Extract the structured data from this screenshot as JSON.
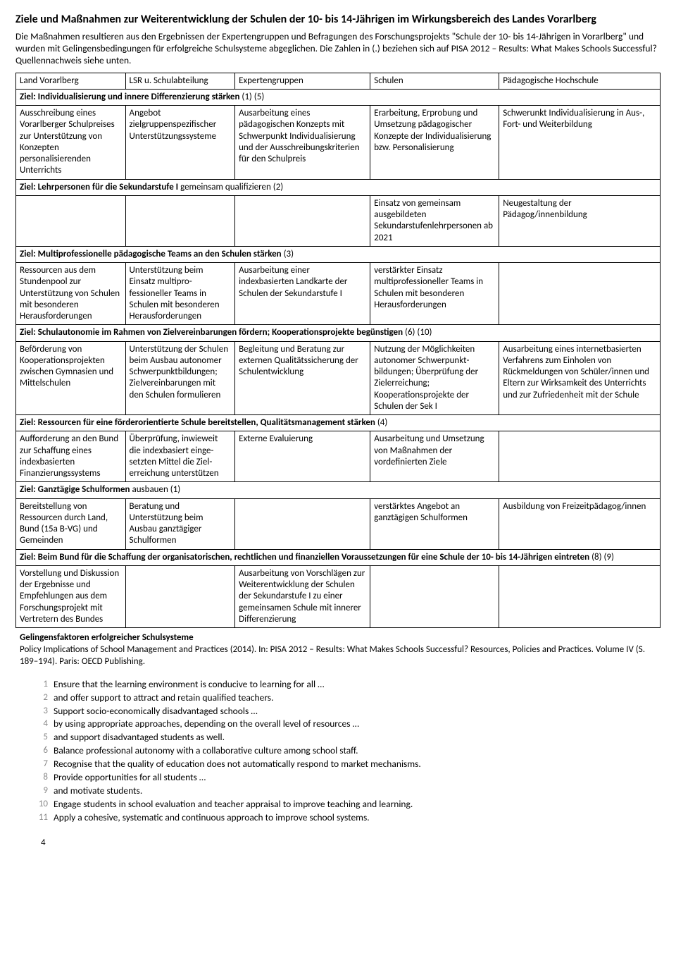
{
  "title": "Ziele und Maßnahmen zur Weiterentwicklung der Schulen der 10- bis 14-Jährigen im Wirkungsbereich des Landes Vorarlberg",
  "intro": "Die Maßnahmen resultieren aus den Ergebnissen der Expertengruppen und Befragungen des Forschungsprojekts \"Schule der 10- bis 14-Jährigen in Vorarlberg\" und wurden mit Gelingensbedingungen für erfolgreiche Schulsysteme abgeglichen. Die Zahlen in (.) beziehen sich auf PISA 2012 – Results: What Makes Schools Successful? Quellennachweis siehe unten.",
  "headers": {
    "c1": "Land Vorarlberg",
    "c2": "LSR u. Schulabteilung",
    "c3": "Expertengruppen",
    "c4": "Schulen",
    "c5": "Pädagogische Hochschule"
  },
  "sections": [
    {
      "ziel": "Ziel: Individualisierung und innere Differenzierung stärken",
      "suffix": "(1) (5)",
      "rows": [
        {
          "c1": "Ausschreibung eines Vorarlberger Schulpreises zur Unterstützung von Konzepten personalisierenden Unterrichts",
          "c2": "Angebot zielgruppenspezifischer Unterstützungssysteme",
          "c3": "Ausarbeitung eines pädagogischen Konzepts mit Schwerpunkt Indivi­dualisierung und der Ausschreibungskriterien für den Schulpreis",
          "c4": "Erarbeitung, Erprobung und Umsetzung pädagogischer Konzepte der Individualisierung bzw. Personalisierung",
          "c5": "Schwerunkt Individualisierung in Aus-, Fort- und Weiterbildung"
        }
      ]
    },
    {
      "ziel": "Ziel: Lehrpersonen für die Sekundarstufe I",
      "ziel_light": " gemeinsam qualifizieren ",
      "suffix": "(2)",
      "rows": [
        {
          "c1": "",
          "c2": "",
          "c3": "",
          "c4": "Einsatz von gemeinsam ausgebildeten Sekundarstufenlehr­personen ab 2021",
          "c5": "Neugestaltung der Pädagog/innenbildung"
        }
      ]
    },
    {
      "ziel": "Ziel: Multiprofessionelle pädagogische Teams an den Schulen stärken",
      "suffix": "(3)",
      "rows": [
        {
          "c1": "Ressourcen aus dem Stundenpool zur Unterstützung von Schulen mit besonderen Herausforderungen",
          "c2": "Unterstützung beim Einsatz multipro­fessioneller Teams in Schulen mit besonderen Herausforderungen",
          "c3": "Ausarbeitung einer indexbasierten Landkarte der Schulen der Sekundarstufe I",
          "c4": "verstärkter Einsatz multiprofessioneller Teams in Schulen mit besonderen Herausforderungen",
          "c5": ""
        }
      ]
    },
    {
      "ziel": "Ziel: Schulautonomie im Rahmen von Zielvereinbarungen fördern; Kooperationsprojekte begünstigen",
      "suffix": "(6) (10)",
      "rows": [
        {
          "c1": "Beförderung von Kooperationsprojekten zwischen Gymnasien und Mittelschulen",
          "c2": "Unterstützung der Schulen beim Ausbau autonomer Schwer­punktbildungen; Zielvereinbarungen mit den Schulen formulieren",
          "c3": "Begleitung und Beratung zur externen Qualitätssicherung der Schulentwicklung",
          "c4": "Nutzung der Möglichkeiten autonomer Schwerpunkt­bildungen; Überprüfung der Zielerreichung; Kooperationsprojekte der Schulen der Sek I",
          "c5": "Ausarbeitung eines internet­basierten Verfahrens zum Einholen von Rückmeldungen von Schüler/innen und Eltern zur Wirksamkeit des Unterrichts und zur Zufriedenheit mit der Schule"
        }
      ]
    },
    {
      "ziel": "Ziel: Ressourcen für eine förderorientierte Schule bereitstellen, Qualitätsmanagement stärken",
      "suffix": "(4)",
      "rows": [
        {
          "c1": "Aufforderung an den Bund zur Schaffung eines indexbasierten Finanzierungssystems",
          "c2": "Überprüfung, inwieweit die indexbasiert einge­setzten Mittel die Ziel­erreichung unterstützen",
          "c3": "Externe Evaluierung",
          "c4": "Ausarbeitung und Umsetzung von Maßnahmen der vordefinierten Ziele",
          "c5": ""
        }
      ]
    },
    {
      "ziel": "Ziel: Ganztägige Schulformen",
      "ziel_light": " ausbauen ",
      "suffix": "(1)",
      "rows": [
        {
          "c1": "Bereitstellung von Ressourcen durch Land, Bund (15a B-VG) und Gemeinden",
          "c2": "Beratung und Unterstützung beim Ausbau ganztägiger Schulformen",
          "c3": "",
          "c4": "verstärktes Angebot an ganztägigen Schulformen",
          "c5": "Ausbildung von Freizeitpädagog/innen"
        }
      ]
    },
    {
      "ziel": "Ziel: Beim Bund für die Schaffung der organisatorischen, rechtlichen und finanziellen Voraussetzungen für eine Schule der 10- bis 14-Jährigen eintreten",
      "suffix": "(8) (9)",
      "rows": [
        {
          "c1": "Vorstellung und Diskussion der Ergebnisse und Empfehlungen aus dem Forschungsprojekt mit Vertretern des Bundes",
          "c2": "",
          "c3": "Ausarbeitung von Vor­schlägen zur Weiterent­wicklung der Schulen der Sekundarstufe I zu einer gemeinsamen Schule mit innerer Differenzierung",
          "c4": "",
          "c5": ""
        }
      ]
    }
  ],
  "footnote": {
    "bold": "Gelingensfaktoren erfolgreicher Schulsysteme",
    "text": "Policy Implications of School Management and Practices (2014). In: PISA 2012 – Results: What Makes Schools Successful? Resources, Policies and Practices. Volume IV (S. 189–194). Paris: OECD Publishing."
  },
  "factors": [
    "Ensure that the learning environment is conducive to learning for all …",
    "and offer support to attract and retain qualified teachers.",
    "Support socio-economically disadvantaged schools …",
    "by using appropriate approaches, depending on the overall level of resources …",
    "and support disadvantaged students as well.",
    "Balance professional autonomy with a collaborative culture among school staff.",
    "Recognise that the quality of education does not automatically respond to market mechanisms.",
    "Provide opportunities for all students …",
    "and motivate students.",
    "Engage students in school evaluation and teacher appraisal to improve teaching and learning.",
    "Apply a cohesive, systematic and continuous approach to improve school systems."
  ],
  "pagenum": "4"
}
